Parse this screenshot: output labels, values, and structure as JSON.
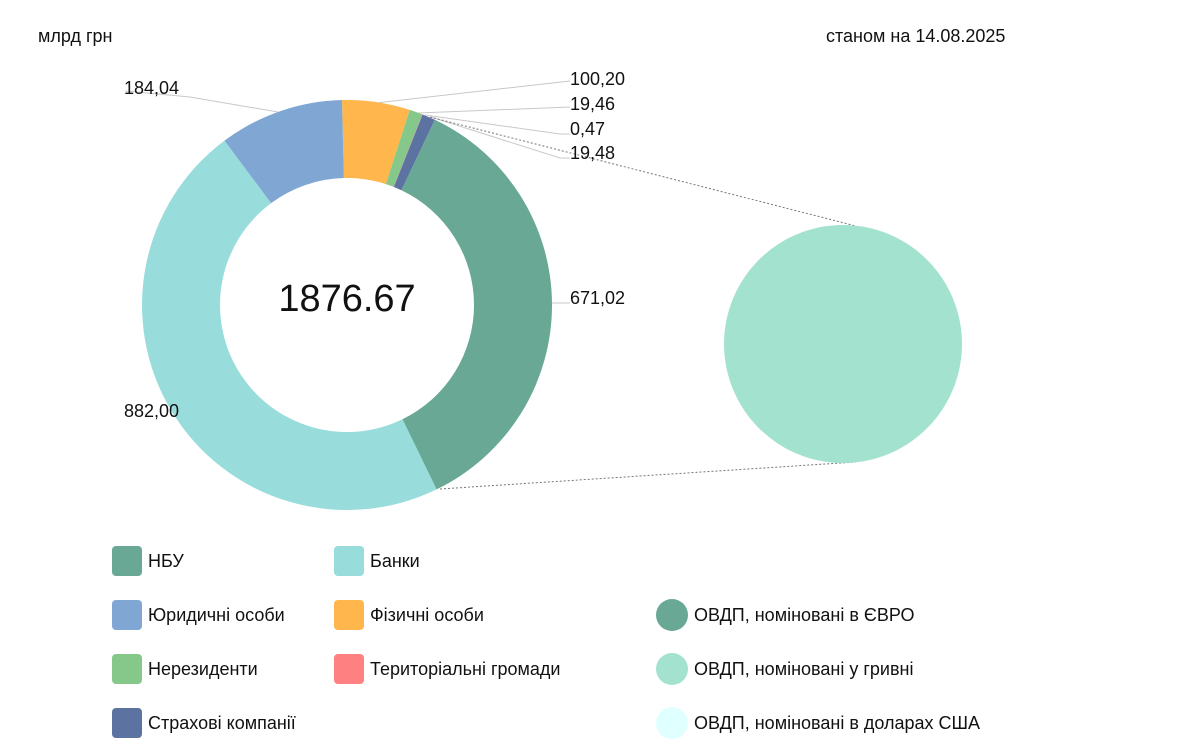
{
  "header": {
    "unit": "млрд грн",
    "date": "станом на 14.08.2025"
  },
  "chart_data": {
    "type": "pie-of-pie (doughnut)",
    "total_label": "1876.67",
    "unit": "млрд грн",
    "slices": [
      {
        "name": "Фізичні особи",
        "value": 100.2,
        "label": "100,20",
        "color": "#ffb74d"
      },
      {
        "name": "Нерезиденти",
        "value": 19.46,
        "label": "19,46",
        "color": "#85c88a"
      },
      {
        "name": "Територіальні громади",
        "value": 0.47,
        "label": "0,47",
        "color": "#ff8080"
      },
      {
        "name": "Страхові компанії",
        "value": 19.48,
        "label": "19,48",
        "color": "#5c72a0"
      },
      {
        "name": "НБУ",
        "value": 671.02,
        "label": "671,02",
        "color": "#68a894"
      },
      {
        "name": "Банки",
        "value": 882.0,
        "label": "882,00",
        "color": "#98dcdc"
      },
      {
        "name": "Юридичні особи",
        "value": 184.04,
        "label": "184,04",
        "color": "#80a6d4"
      }
    ],
    "secondary": [
      {
        "name": "ОВДП, номіновані у гривні",
        "share": 1,
        "color": "#a4e2d0"
      }
    ],
    "legend": {
      "left": [
        {
          "name": "НБУ",
          "color": "#68a894"
        },
        {
          "name": "Банки",
          "color": "#98dcdc"
        },
        {
          "name": "Юридичні особи",
          "color": "#80a6d4"
        },
        {
          "name": "Фізичні особи",
          "color": "#ffb74d"
        },
        {
          "name": "Нерезиденти",
          "color": "#85c88a"
        },
        {
          "name": "Територіальні громади",
          "color": "#ff8080"
        },
        {
          "name": "Страхові компанії",
          "color": "#5c72a0"
        }
      ],
      "right": [
        {
          "name": "ОВДП, номіновані в ЄВРО",
          "color": "#68a894"
        },
        {
          "name": "ОВДП, номіновані у гривні",
          "color": "#a4e2d0"
        },
        {
          "name": "ОВДП, номіновані в доларах США",
          "color": "#e0ffff"
        }
      ]
    }
  }
}
